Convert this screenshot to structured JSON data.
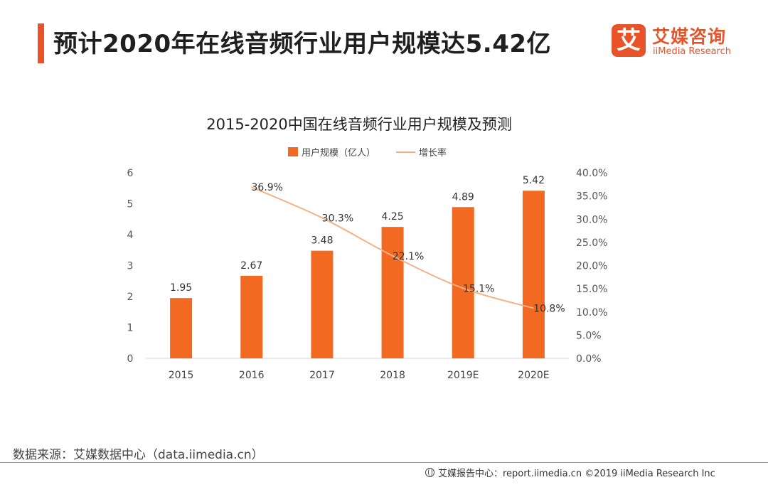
{
  "header": {
    "headline": "预计2020年在线音频行业用户规模达5.42亿",
    "logo_mark": "艾",
    "logo_name": "艾媒咨询",
    "logo_sub": "iiMedia Research"
  },
  "colors": {
    "accent": "#e8542a",
    "bar": "#f26a21",
    "line": "#f4b183"
  },
  "chart_data": {
    "type": "bar",
    "title": "2015-2020中国在线音频行业用户规模及预测",
    "categories": [
      "2015",
      "2016",
      "2017",
      "2018",
      "2019E",
      "2020E"
    ],
    "series": [
      {
        "name": "用户规模（亿人）",
        "type": "bar",
        "axis": "left",
        "values": [
          1.95,
          2.67,
          3.48,
          4.25,
          4.89,
          5.42
        ],
        "labels": [
          "1.95",
          "2.67",
          "3.48",
          "4.25",
          "4.89",
          "5.42"
        ]
      },
      {
        "name": "增长率",
        "type": "line",
        "axis": "right",
        "values": [
          null,
          36.9,
          30.3,
          22.1,
          15.1,
          10.8
        ],
        "labels": [
          null,
          "36.9%",
          "30.3%",
          "22.1%",
          "15.1%",
          "10.8%"
        ]
      }
    ],
    "y_left": {
      "min": 0,
      "max": 6,
      "ticks": [
        "0",
        "1",
        "2",
        "3",
        "4",
        "5",
        "6"
      ]
    },
    "y_right": {
      "min": 0,
      "max": 40,
      "ticks": [
        "0.0%",
        "5.0%",
        "10.0%",
        "15.0%",
        "20.0%",
        "25.0%",
        "30.0%",
        "35.0%",
        "40.0%"
      ]
    },
    "legend_position": "top-center",
    "grid": false
  },
  "footer": {
    "source": "数据来源：艾媒数据中心（data.iimedia.cn）",
    "credit": "艾媒报告中心：report.iimedia.cn  ©2019  iiMedia Research  Inc"
  }
}
